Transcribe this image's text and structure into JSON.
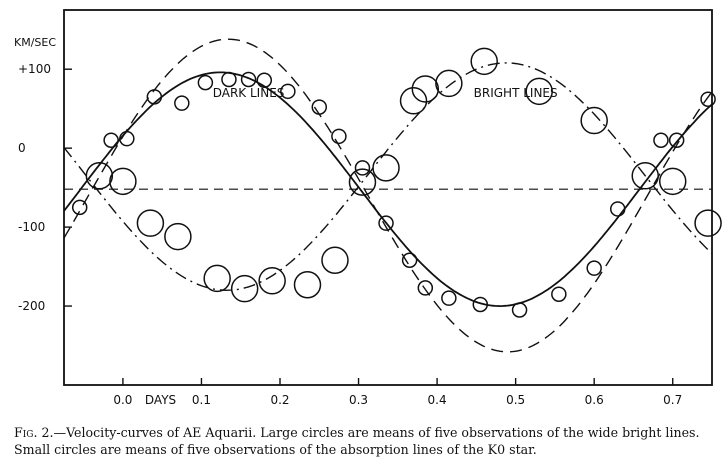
{
  "chart_data": {
    "type": "scatter",
    "title": "",
    "xlabel": "DAYS",
    "ylabel": "KM/SEC",
    "xlim": [
      -0.075,
      0.75
    ],
    "ylim": [
      -300,
      175
    ],
    "x_ticks": [
      0.0,
      0.1,
      0.2,
      0.3,
      0.4,
      0.5,
      0.6,
      0.7
    ],
    "x_tick_labels": [
      "0.0",
      "0.1",
      "0.2",
      "0.3",
      "0.4",
      "0.5",
      "0.6",
      "0.7"
    ],
    "y_ticks": [
      100,
      0,
      -100,
      -200
    ],
    "y_tick_labels": [
      "+100",
      "0",
      "-100",
      "-200"
    ],
    "gamma_velocity": -52,
    "annotations": [
      "DARK LINES",
      "BRIGHT LINES"
    ],
    "series": [
      {
        "name": "DARK LINES",
        "marker": "small circle",
        "points": [
          {
            "x": -0.055,
            "y": -75
          },
          {
            "x": -0.015,
            "y": 10
          },
          {
            "x": 0.005,
            "y": 12
          },
          {
            "x": 0.04,
            "y": 65
          },
          {
            "x": 0.075,
            "y": 57
          },
          {
            "x": 0.105,
            "y": 83
          },
          {
            "x": 0.135,
            "y": 87
          },
          {
            "x": 0.16,
            "y": 87
          },
          {
            "x": 0.18,
            "y": 86
          },
          {
            "x": 0.21,
            "y": 72
          },
          {
            "x": 0.25,
            "y": 52
          },
          {
            "x": 0.275,
            "y": 15
          },
          {
            "x": 0.305,
            "y": -25
          },
          {
            "x": 0.335,
            "y": -95
          },
          {
            "x": 0.365,
            "y": -142
          },
          {
            "x": 0.385,
            "y": -177
          },
          {
            "x": 0.415,
            "y": -190
          },
          {
            "x": 0.455,
            "y": -198
          },
          {
            "x": 0.505,
            "y": -205
          },
          {
            "x": 0.555,
            "y": -185
          },
          {
            "x": 0.6,
            "y": -152
          },
          {
            "x": 0.63,
            "y": -77
          },
          {
            "x": 0.685,
            "y": 10
          },
          {
            "x": 0.705,
            "y": 10
          },
          {
            "x": 0.745,
            "y": 62
          }
        ]
      },
      {
        "name": "BRIGHT LINES",
        "marker": "large circle",
        "points": [
          {
            "x": -0.03,
            "y": -35
          },
          {
            "x": 0.0,
            "y": -42
          },
          {
            "x": 0.035,
            "y": -95
          },
          {
            "x": 0.07,
            "y": -112
          },
          {
            "x": 0.12,
            "y": -165
          },
          {
            "x": 0.155,
            "y": -178
          },
          {
            "x": 0.19,
            "y": -168
          },
          {
            "x": 0.235,
            "y": -173
          },
          {
            "x": 0.27,
            "y": -142
          },
          {
            "x": 0.305,
            "y": -43
          },
          {
            "x": 0.335,
            "y": -25
          },
          {
            "x": 0.37,
            "y": 60
          },
          {
            "x": 0.385,
            "y": 75
          },
          {
            "x": 0.415,
            "y": 82
          },
          {
            "x": 0.46,
            "y": 110
          },
          {
            "x": 0.53,
            "y": 72
          },
          {
            "x": 0.6,
            "y": 35
          },
          {
            "x": 0.665,
            "y": -35
          },
          {
            "x": 0.7,
            "y": -42
          },
          {
            "x": 0.745,
            "y": -95
          }
        ]
      }
    ],
    "curves": [
      {
        "style": "solid",
        "gamma": -52,
        "amplitude": 148,
        "zero_crossing": 0.302,
        "period": 0.7117
      },
      {
        "style": "dashed",
        "gamma": -60,
        "amplitude": 198,
        "zero_crossing": 0.312,
        "period": 0.7117
      },
      {
        "style": "dash-dot",
        "gamma": -36,
        "amplitude": 144,
        "zero_crossing": 0.31,
        "period": 0.7117
      }
    ]
  },
  "caption": {
    "fig": "Fig. 2.",
    "text": "—Velocity-curves of AE Aquarii. Large circles are means of five observations of the wide bright lines. Small circles are means of five observations of the absorption lines of the K0 star."
  }
}
